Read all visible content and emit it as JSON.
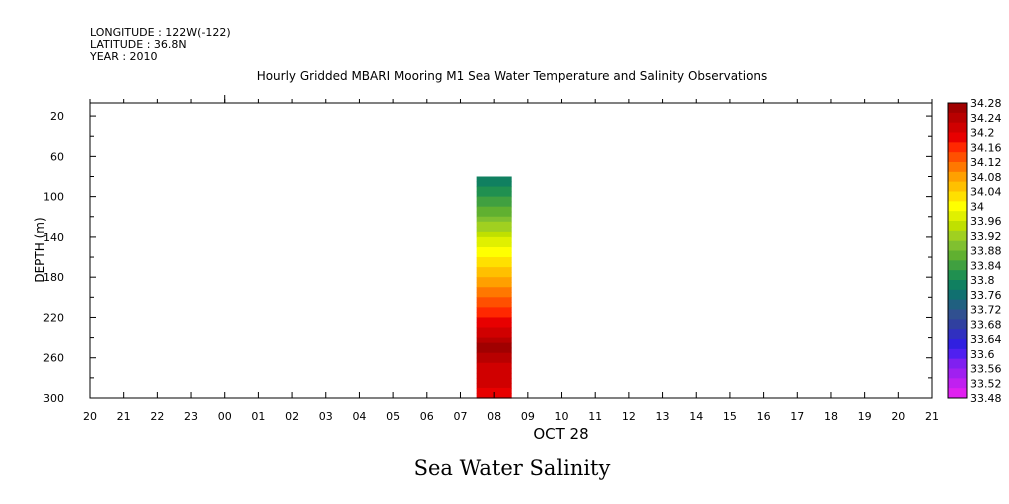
{
  "header": {
    "longitude": "LONGITUDE : 122W(-122)",
    "latitude": "LATITUDE : 36.8N",
    "year": "YEAR : 2010"
  },
  "chart_data": {
    "type": "heatmap",
    "title": "Hourly Gridded MBARI Mooring M1 Sea Water Temperature and Salinity Observations",
    "subtitle": "Sea Water Salinity",
    "xlabel": "OCT 28",
    "ylabel": "DEPTH (m)",
    "x_ticks": [
      "20",
      "21",
      "22",
      "23",
      "00",
      "01",
      "02",
      "03",
      "04",
      "05",
      "06",
      "07",
      "08",
      "09",
      "10",
      "11",
      "12",
      "13",
      "14",
      "15",
      "16",
      "17",
      "18",
      "19",
      "20",
      "21"
    ],
    "y_ticks": [
      20,
      60,
      100,
      140,
      180,
      220,
      260,
      300
    ],
    "ylim": [
      300,
      7
    ],
    "colorbar": {
      "levels": [
        34.28,
        34.24,
        34.2,
        34.16,
        34.12,
        34.08,
        34.04,
        34.0,
        33.96,
        33.92,
        33.88,
        33.84,
        33.8,
        33.76,
        33.72,
        33.68,
        33.64,
        33.6,
        33.56,
        33.52,
        33.48
      ],
      "labels": [
        "34.28",
        "34.24",
        "34.2",
        "34.16",
        "34.12",
        "34.08",
        "34.04",
        "34",
        "33.96",
        "33.92",
        "33.88",
        "33.84",
        "33.8",
        "33.76",
        "33.72",
        "33.68",
        "33.64",
        "33.6",
        "33.56",
        "33.52",
        "33.48"
      ],
      "colors": [
        "#a00000",
        "#b80000",
        "#d00000",
        "#e80000",
        "#ff2800",
        "#ff5000",
        "#ff7800",
        "#ffa000",
        "#ffc000",
        "#ffe000",
        "#ffff00",
        "#e0f000",
        "#c0e000",
        "#a0d020",
        "#80c030",
        "#60b030",
        "#40a040",
        "#209050",
        "#108060",
        "#107070",
        "#206080",
        "#305090",
        "#3040a0",
        "#3030c0",
        "#3020e0",
        "#5020f0",
        "#8020f0",
        "#a020f0",
        "#c020f0",
        "#e020f0"
      ]
    },
    "column": {
      "x_hour": "08",
      "depth_top": 80,
      "depth_bottom": 300,
      "profile": [
        {
          "depth": 80,
          "value": 33.77
        },
        {
          "depth": 100,
          "value": 33.83
        },
        {
          "depth": 125,
          "value": 33.9
        },
        {
          "depth": 145,
          "value": 33.97
        },
        {
          "depth": 165,
          "value": 34.02
        },
        {
          "depth": 185,
          "value": 34.08
        },
        {
          "depth": 210,
          "value": 34.15
        },
        {
          "depth": 230,
          "value": 34.2
        },
        {
          "depth": 250,
          "value": 34.27
        },
        {
          "depth": 270,
          "value": 34.22
        },
        {
          "depth": 300,
          "value": 34.19
        }
      ]
    }
  }
}
